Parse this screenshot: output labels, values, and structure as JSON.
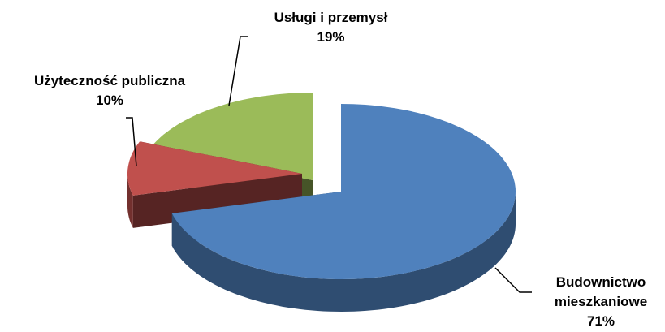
{
  "chart_data": {
    "type": "pie",
    "categories": [
      "Budownictwo mieszkaniowe",
      "Użyteczność publiczna",
      "Usługi i przemysł"
    ],
    "values": [
      71,
      10,
      19
    ],
    "value_labels": [
      "71%",
      "10%",
      "19%"
    ],
    "colors": [
      "#4f81bd",
      "#c0504d",
      "#9bbb59"
    ]
  }
}
